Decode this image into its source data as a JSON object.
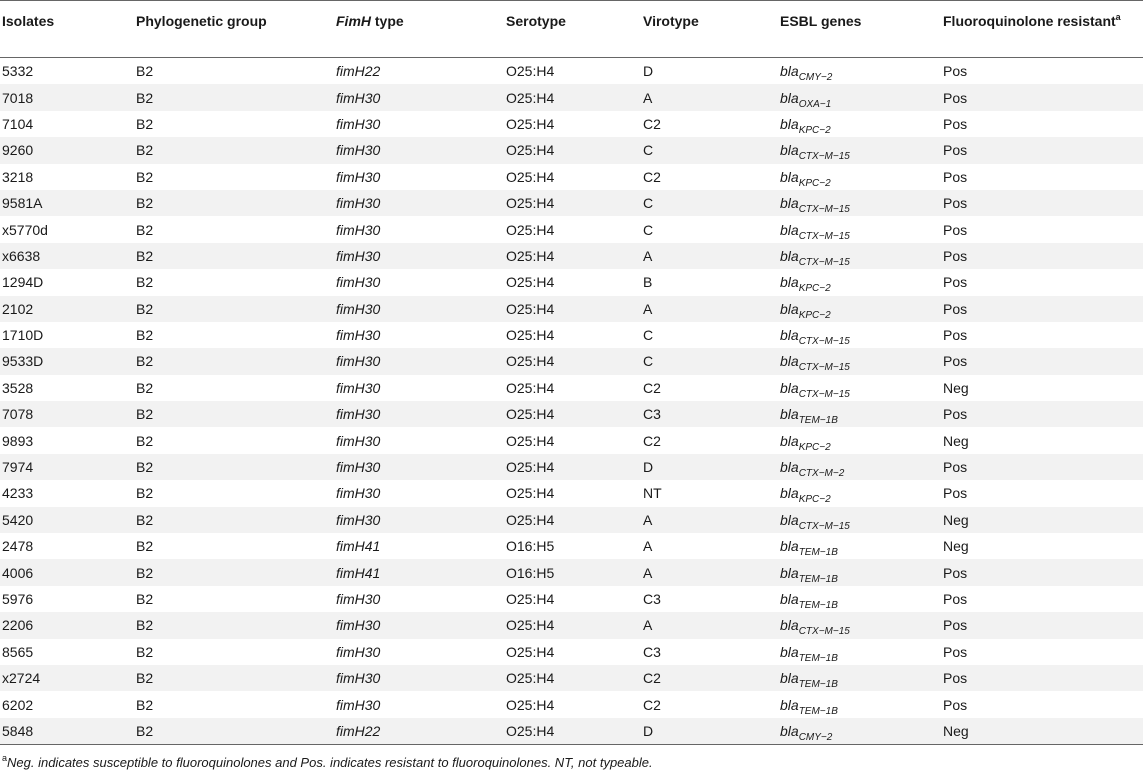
{
  "table": {
    "headers": {
      "isolates": "Isolates",
      "phylogenetic_group": "Phylogenetic group",
      "fimh_type_italic": "FimH",
      "fimh_type_rest": " type",
      "serotype": "Serotype",
      "virotype": "Virotype",
      "esbl_genes": "ESBL genes",
      "fluoroquinolone": "Fluoroquinolone resistant",
      "fluoroquinolone_sup": "a"
    },
    "rows": [
      {
        "isolate": "5332",
        "group": "B2",
        "fimh": "fimH22",
        "serotype": "O25:H4",
        "virotype": "D",
        "gene_base": "bla",
        "gene_sub": "CMY−2",
        "fq": "Pos"
      },
      {
        "isolate": "7018",
        "group": "B2",
        "fimh": "fimH30",
        "serotype": "O25:H4",
        "virotype": "A",
        "gene_base": "bla",
        "gene_sub": "OXA−1",
        "fq": "Pos"
      },
      {
        "isolate": "7104",
        "group": "B2",
        "fimh": "fimH30",
        "serotype": "O25:H4",
        "virotype": "C2",
        "gene_base": "bla",
        "gene_sub": "KPC−2",
        "fq": "Pos"
      },
      {
        "isolate": "9260",
        "group": "B2",
        "fimh": "fimH30",
        "serotype": "O25:H4",
        "virotype": "C",
        "gene_base": "bla",
        "gene_sub": "CTX−M−15",
        "fq": "Pos"
      },
      {
        "isolate": "3218",
        "group": "B2",
        "fimh": "fimH30",
        "serotype": "O25:H4",
        "virotype": "C2",
        "gene_base": "bla",
        "gene_sub": "KPC−2",
        "fq": "Pos"
      },
      {
        "isolate": "9581A",
        "group": "B2",
        "fimh": "fimH30",
        "serotype": "O25:H4",
        "virotype": "C",
        "gene_base": "bla",
        "gene_sub": "CTX−M−15",
        "fq": "Pos"
      },
      {
        "isolate": "x5770d",
        "group": "B2",
        "fimh": "fimH30",
        "serotype": "O25:H4",
        "virotype": "C",
        "gene_base": "bla",
        "gene_sub": "CTX−M−15",
        "fq": "Pos"
      },
      {
        "isolate": "x6638",
        "group": "B2",
        "fimh": "fimH30",
        "serotype": "O25:H4",
        "virotype": "A",
        "gene_base": "bla",
        "gene_sub": "CTX−M−15",
        "fq": "Pos"
      },
      {
        "isolate": "1294D",
        "group": "B2",
        "fimh": "fimH30",
        "serotype": "O25:H4",
        "virotype": "B",
        "gene_base": "bla",
        "gene_sub": "KPC−2",
        "fq": "Pos"
      },
      {
        "isolate": "2102",
        "group": "B2",
        "fimh": "fimH30",
        "serotype": "O25:H4",
        "virotype": "A",
        "gene_base": "bla",
        "gene_sub": "KPC−2",
        "fq": "Pos"
      },
      {
        "isolate": "1710D",
        "group": "B2",
        "fimh": "fimH30",
        "serotype": "O25:H4",
        "virotype": "C",
        "gene_base": "bla",
        "gene_sub": "CTX−M−15",
        "fq": "Pos"
      },
      {
        "isolate": "9533D",
        "group": "B2",
        "fimh": "fimH30",
        "serotype": "O25:H4",
        "virotype": "C",
        "gene_base": "bla",
        "gene_sub": "CTX−M−15",
        "fq": "Pos"
      },
      {
        "isolate": "3528",
        "group": "B2",
        "fimh": "fimH30",
        "serotype": "O25:H4",
        "virotype": "C2",
        "gene_base": "bla",
        "gene_sub": "CTX−M−15",
        "fq": "Neg"
      },
      {
        "isolate": "7078",
        "group": "B2",
        "fimh": "fimH30",
        "serotype": "O25:H4",
        "virotype": "C3",
        "gene_base": "bla",
        "gene_sub": "TEM−1B",
        "fq": "Pos"
      },
      {
        "isolate": "9893",
        "group": "B2",
        "fimh": "fimH30",
        "serotype": "O25:H4",
        "virotype": "C2",
        "gene_base": "bla",
        "gene_sub": "KPC−2",
        "fq": "Neg"
      },
      {
        "isolate": "7974",
        "group": "B2",
        "fimh": "fimH30",
        "serotype": "O25:H4",
        "virotype": "D",
        "gene_base": "bla",
        "gene_sub": "CTX−M−2",
        "fq": "Pos"
      },
      {
        "isolate": "4233",
        "group": "B2",
        "fimh": "fimH30",
        "serotype": "O25:H4",
        "virotype": "NT",
        "gene_base": "bla",
        "gene_sub": "KPC−2",
        "fq": "Pos"
      },
      {
        "isolate": "5420",
        "group": "B2",
        "fimh": "fimH30",
        "serotype": "O25:H4",
        "virotype": "A",
        "gene_base": "bla",
        "gene_sub": "CTX−M−15",
        "fq": "Neg"
      },
      {
        "isolate": "2478",
        "group": "B2",
        "fimh": "fimH41",
        "serotype": "O16:H5",
        "virotype": "A",
        "gene_base": "bla",
        "gene_sub": "TEM−1B",
        "fq": "Neg"
      },
      {
        "isolate": "4006",
        "group": "B2",
        "fimh": "fimH41",
        "serotype": "O16:H5",
        "virotype": "A",
        "gene_base": "bla",
        "gene_sub": "TEM−1B",
        "fq": "Pos"
      },
      {
        "isolate": "5976",
        "group": "B2",
        "fimh": "fimH30",
        "serotype": "O25:H4",
        "virotype": "C3",
        "gene_base": "bla",
        "gene_sub": "TEM−1B",
        "fq": "Pos"
      },
      {
        "isolate": "2206",
        "group": "B2",
        "fimh": "fimH30",
        "serotype": "O25:H4",
        "virotype": "A",
        "gene_base": "bla",
        "gene_sub": "CTX−M−15",
        "fq": "Pos"
      },
      {
        "isolate": "8565",
        "group": "B2",
        "fimh": "fimH30",
        "serotype": "O25:H4",
        "virotype": "C3",
        "gene_base": "bla",
        "gene_sub": "TEM−1B",
        "fq": "Pos"
      },
      {
        "isolate": "x2724",
        "group": "B2",
        "fimh": "fimH30",
        "serotype": "O25:H4",
        "virotype": "C2",
        "gene_base": "bla",
        "gene_sub": "TEM−1B",
        "fq": "Pos"
      },
      {
        "isolate": "6202",
        "group": "B2",
        "fimh": "fimH30",
        "serotype": "O25:H4",
        "virotype": "C2",
        "gene_base": "bla",
        "gene_sub": "TEM−1B",
        "fq": "Pos"
      },
      {
        "isolate": "5848",
        "group": "B2",
        "fimh": "fimH22",
        "serotype": "O25:H4",
        "virotype": "D",
        "gene_base": "bla",
        "gene_sub": "CMY−2",
        "fq": "Neg"
      }
    ]
  },
  "footnote": {
    "marker": "a",
    "text": "Neg. indicates susceptible to fluoroquinolones and Pos. indicates resistant to fluoroquinolones. NT, not typeable."
  }
}
